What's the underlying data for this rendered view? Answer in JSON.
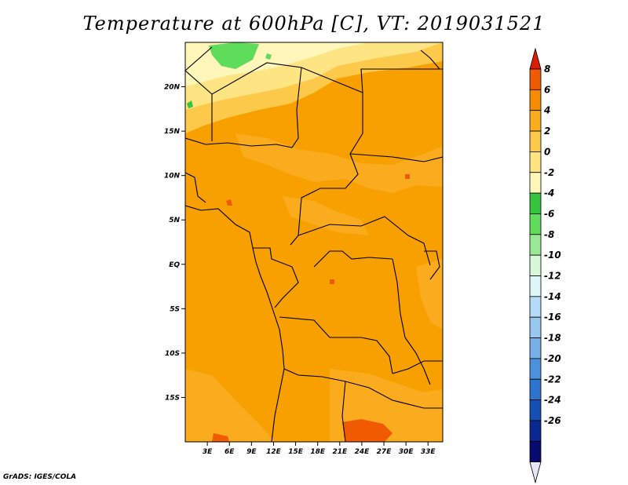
{
  "title": "Temperature at 600hPa [C], VT: 2019031521",
  "credit": "GrADS: IGES/COLA",
  "map": {
    "lon_range": [
      0,
      35
    ],
    "lat_range": [
      -20,
      25
    ],
    "lat_ticks": [
      {
        "value": 20,
        "label": "20N"
      },
      {
        "value": 15,
        "label": "15N"
      },
      {
        "value": 10,
        "label": "10N"
      },
      {
        "value": 5,
        "label": "5N"
      },
      {
        "value": 0,
        "label": "EQ"
      },
      {
        "value": -5,
        "label": "5S"
      },
      {
        "value": -10,
        "label": "10S"
      },
      {
        "value": -15,
        "label": "15S"
      }
    ],
    "lon_ticks": [
      {
        "value": 3,
        "label": "3E"
      },
      {
        "value": 6,
        "label": "6E"
      },
      {
        "value": 9,
        "label": "9E"
      },
      {
        "value": 12,
        "label": "12E"
      },
      {
        "value": 15,
        "label": "15E"
      },
      {
        "value": 18,
        "label": "18E"
      },
      {
        "value": 21,
        "label": "21E"
      },
      {
        "value": 24,
        "label": "24E"
      },
      {
        "value": 27,
        "label": "27E"
      },
      {
        "value": 30,
        "label": "30E"
      },
      {
        "value": 33,
        "label": "33E"
      }
    ]
  },
  "colorbar": {
    "labels": [
      "8",
      "6",
      "4",
      "2",
      "0",
      "-2",
      "-4",
      "-6",
      "-8",
      "-10",
      "-12",
      "-14",
      "-16",
      "-18",
      "-20",
      "-22",
      "-24",
      "-26"
    ],
    "colors": [
      "#dc1e00",
      "#f05a00",
      "#f58c00",
      "#faab1e",
      "#fdc94b",
      "#fee482",
      "#fef7b9",
      "#36c43c",
      "#5edc5a",
      "#9ae896",
      "#d6f8d6",
      "#e0f7fa",
      "#b4dcf8",
      "#96c8f0",
      "#78afe8",
      "#4b91dc",
      "#2d73d0",
      "#1450b4",
      "#0a2891",
      "#070a6e",
      "#e6e6fa"
    ]
  }
}
